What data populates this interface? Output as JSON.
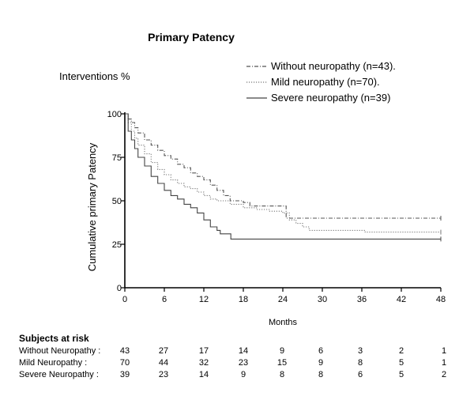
{
  "chart_data": {
    "type": "line",
    "title": "Primary Patency",
    "subtitle": "Interventions %",
    "xlabel": "Months",
    "ylabel": "Cumulative primary Patency",
    "xlim": [
      0,
      48
    ],
    "ylim": [
      0,
      100
    ],
    "x_ticks": [
      0,
      6,
      12,
      18,
      24,
      30,
      36,
      42,
      48
    ],
    "y_ticks": [
      0,
      25,
      50,
      75,
      100
    ],
    "grid": false,
    "legend_position": "top-right",
    "series": [
      {
        "name": "Without neuropathy (n=43).",
        "line_style": "dash-dot",
        "color": "#555555",
        "points": [
          [
            0,
            100
          ],
          [
            0.5,
            97
          ],
          [
            1,
            95
          ],
          [
            1.5,
            92
          ],
          [
            2,
            89
          ],
          [
            3,
            85
          ],
          [
            4,
            82
          ],
          [
            5,
            79
          ],
          [
            6,
            76
          ],
          [
            7,
            74
          ],
          [
            8,
            71
          ],
          [
            9,
            69
          ],
          [
            10,
            66
          ],
          [
            11,
            64
          ],
          [
            12,
            62
          ],
          [
            13,
            59
          ],
          [
            14,
            56
          ],
          [
            15,
            53
          ],
          [
            16,
            50
          ],
          [
            18,
            49
          ],
          [
            19,
            47
          ],
          [
            24,
            47
          ],
          [
            24.5,
            40
          ],
          [
            48,
            40
          ]
        ]
      },
      {
        "name": "Mild neuropathy (n=70).",
        "line_style": "dotted",
        "color": "#777777",
        "points": [
          [
            0,
            100
          ],
          [
            0.5,
            95
          ],
          [
            1,
            90
          ],
          [
            1.5,
            86
          ],
          [
            2,
            82
          ],
          [
            3,
            77
          ],
          [
            4,
            72
          ],
          [
            5,
            68
          ],
          [
            6,
            65
          ],
          [
            7,
            62
          ],
          [
            8,
            60
          ],
          [
            9,
            58
          ],
          [
            10,
            57
          ],
          [
            11,
            55
          ],
          [
            12,
            53
          ],
          [
            13,
            51
          ],
          [
            14,
            50
          ],
          [
            16,
            48
          ],
          [
            18,
            46
          ],
          [
            20,
            45
          ],
          [
            22,
            44
          ],
          [
            24,
            43
          ],
          [
            25,
            39
          ],
          [
            26,
            37
          ],
          [
            27,
            35
          ],
          [
            28,
            33
          ],
          [
            36,
            33
          ],
          [
            36.5,
            32
          ],
          [
            48,
            32
          ]
        ]
      },
      {
        "name": "Severe neuropathy (n=39)",
        "line_style": "solid",
        "color": "#444444",
        "points": [
          [
            0,
            100
          ],
          [
            0.5,
            90
          ],
          [
            1,
            85
          ],
          [
            1.5,
            80
          ],
          [
            2,
            75
          ],
          [
            3,
            70
          ],
          [
            4,
            64
          ],
          [
            5,
            60
          ],
          [
            6,
            56
          ],
          [
            7,
            53
          ],
          [
            8,
            51
          ],
          [
            9,
            48
          ],
          [
            10,
            46
          ],
          [
            11,
            43
          ],
          [
            12,
            39
          ],
          [
            13,
            35
          ],
          [
            14,
            33
          ],
          [
            14.5,
            31
          ],
          [
            16,
            31
          ],
          [
            16.1,
            28
          ],
          [
            48,
            28
          ]
        ]
      }
    ]
  },
  "risk_table": {
    "title": "Subjects at risk",
    "rows": [
      {
        "label": "Without Neuropathy :",
        "values": [
          "43",
          "27",
          "17",
          "14",
          "9",
          "6",
          "3",
          "2",
          "1"
        ]
      },
      {
        "label": "Mild Neuropathy :",
        "values": [
          "70",
          "44",
          "32",
          "23",
          "15",
          "9",
          "8",
          "5",
          "1"
        ]
      },
      {
        "label": "Severe Neuropathy :",
        "values": [
          "39",
          "23",
          "14",
          "9",
          "8",
          "8",
          "6",
          "5",
          "2"
        ]
      }
    ]
  }
}
